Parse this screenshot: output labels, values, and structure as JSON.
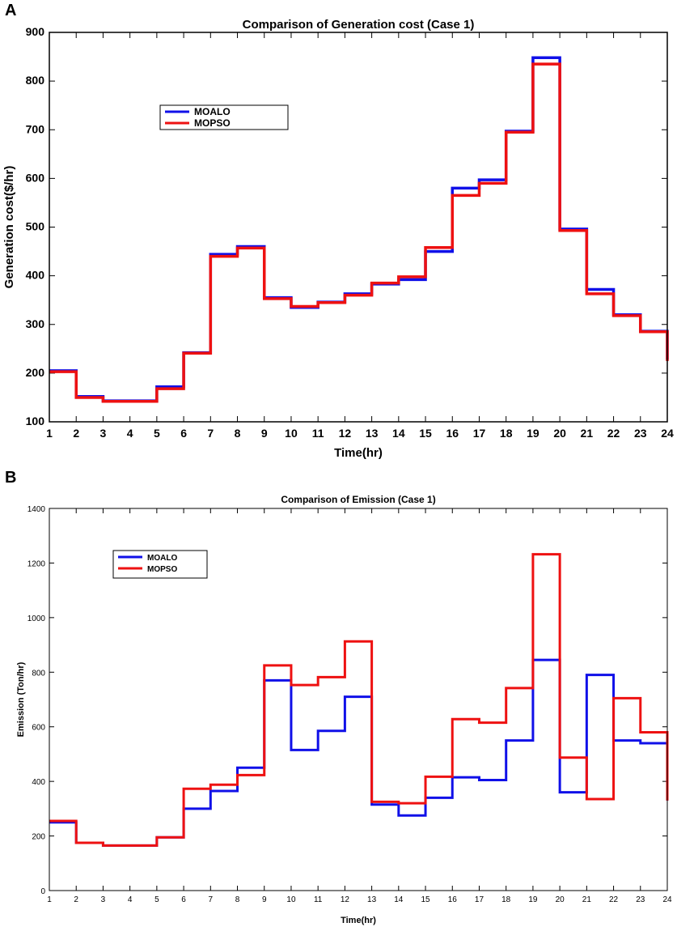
{
  "panels": {
    "a_letter": "A",
    "b_letter": "B"
  },
  "colors": {
    "moalo": "#1010e8",
    "mopso": "#ee1111"
  },
  "chart_data": [
    {
      "type": "line",
      "step": "post",
      "title": "Comparison of Generation cost (Case 1)",
      "xlabel": "Time(hr)",
      "ylabel": "Generation cost($/hr)",
      "xlim": [
        1,
        24
      ],
      "ylim": [
        100,
        900
      ],
      "xticks": [
        1,
        2,
        3,
        4,
        5,
        6,
        7,
        8,
        9,
        10,
        11,
        12,
        13,
        14,
        15,
        16,
        17,
        18,
        19,
        20,
        21,
        22,
        23,
        24
      ],
      "yticks": [
        100,
        200,
        300,
        400,
        500,
        600,
        700,
        800,
        900
      ],
      "legend_position": "upper-left",
      "x": [
        1,
        2,
        3,
        4,
        5,
        6,
        7,
        8,
        9,
        10,
        11,
        12,
        13,
        14,
        15,
        16,
        17,
        18,
        19,
        20,
        21,
        22,
        23,
        24
      ],
      "series": [
        {
          "name": "MOALO",
          "color": "#1010e8",
          "values": [
            205,
            152,
            143,
            143,
            172,
            242,
            444,
            460,
            355,
            335,
            346,
            363,
            383,
            392,
            450,
            580,
            597,
            697,
            848,
            496,
            372,
            320,
            286,
            228
          ]
        },
        {
          "name": "MOPSO",
          "color": "#ee1111",
          "values": [
            203,
            150,
            142,
            142,
            168,
            241,
            440,
            457,
            353,
            337,
            345,
            360,
            385,
            398,
            458,
            565,
            590,
            695,
            835,
            493,
            363,
            318,
            285,
            225
          ]
        }
      ]
    },
    {
      "type": "line",
      "step": "post",
      "title": "Comparison of Emission (Case 1)",
      "xlabel": "Time(hr)",
      "ylabel": "Emission (Ton/hr)",
      "xlim": [
        1,
        24
      ],
      "ylim": [
        0,
        1400
      ],
      "xticks": [
        1,
        2,
        3,
        4,
        5,
        6,
        7,
        8,
        9,
        10,
        11,
        12,
        13,
        14,
        15,
        16,
        17,
        18,
        19,
        20,
        21,
        22,
        23,
        24
      ],
      "yticks": [
        0,
        200,
        400,
        600,
        800,
        1000,
        1200,
        1400
      ],
      "legend_position": "upper-left",
      "x": [
        1,
        2,
        3,
        4,
        5,
        6,
        7,
        8,
        9,
        10,
        11,
        12,
        13,
        14,
        15,
        16,
        17,
        18,
        19,
        20,
        21,
        22,
        23,
        24
      ],
      "series": [
        {
          "name": "MOALO",
          "color": "#1010e8",
          "values": [
            250,
            175,
            165,
            165,
            195,
            300,
            365,
            450,
            770,
            515,
            585,
            710,
            315,
            275,
            340,
            415,
            405,
            550,
            845,
            360,
            790,
            550,
            540,
            330
          ]
        },
        {
          "name": "MOPSO",
          "color": "#ee1111",
          "values": [
            255,
            175,
            165,
            165,
            195,
            373,
            388,
            423,
            825,
            753,
            782,
            913,
            325,
            320,
            417,
            628,
            615,
            742,
            1232,
            487,
            335,
            705,
            580,
            330
          ]
        }
      ]
    }
  ]
}
